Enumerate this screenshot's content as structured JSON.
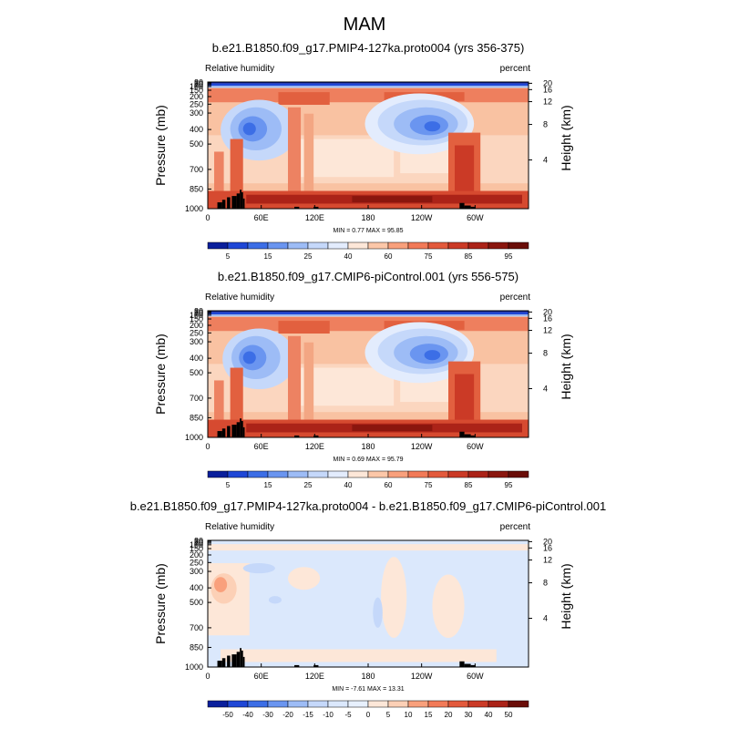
{
  "figure": {
    "title": "MAM"
  },
  "chart_data": [
    {
      "type": "heatmap",
      "title": "b.e21.B1850.f09_g17.PMIP4-127ka.proto004 (yrs 356-375)",
      "left_label": "Relative humidity",
      "right_label": "percent",
      "ylabel": "Pressure (mb)",
      "y2label": "Height (km)",
      "xlim": [
        0,
        360
      ],
      "x_ticks": [
        "0",
        "60E",
        "120E",
        "180",
        "120W",
        "60W"
      ],
      "y_ticks": [
        "1000",
        "850",
        "700",
        "500",
        "400",
        "300",
        "250",
        "200",
        "150",
        "100",
        "70",
        "50",
        "30"
      ],
      "y2_ticks": [
        "4",
        "8",
        "12",
        "16",
        "20"
      ],
      "stats": "MIN =   0.77   MAX =  95.85",
      "min": 0.77,
      "max": 95.85,
      "colorbar": {
        "labels": [
          "5",
          "15",
          "25",
          "40",
          "60",
          "75",
          "85",
          "95"
        ],
        "colors": [
          "#0a1f9c",
          "#1f47d6",
          "#3c6ee6",
          "#6a95f0",
          "#9dbcf6",
          "#c5d8fa",
          "#e3ecfd",
          "#fde7d8",
          "#fcc7a8",
          "#f9a07c",
          "#f27a58",
          "#e35a3c",
          "#cb3a26",
          "#ab2318",
          "#8a160e",
          "#6a0d08"
        ]
      }
    },
    {
      "type": "heatmap",
      "title": "b.e21.B1850.f09_g17.CMIP6-piControl.001 (yrs 556-575)",
      "left_label": "Relative humidity",
      "right_label": "percent",
      "ylabel": "Pressure (mb)",
      "y2label": "Height (km)",
      "xlim": [
        0,
        360
      ],
      "x_ticks": [
        "0",
        "60E",
        "120E",
        "180",
        "120W",
        "60W"
      ],
      "y_ticks": [
        "1000",
        "850",
        "700",
        "500",
        "400",
        "300",
        "250",
        "200",
        "150",
        "100",
        "70",
        "50",
        "30"
      ],
      "y2_ticks": [
        "4",
        "8",
        "12",
        "16",
        "20"
      ],
      "stats": "MIN =   0.69   MAX =  95.79",
      "min": 0.69,
      "max": 95.79,
      "colorbar": {
        "labels": [
          "5",
          "15",
          "25",
          "40",
          "60",
          "75",
          "85",
          "95"
        ],
        "colors": [
          "#0a1f9c",
          "#1f47d6",
          "#3c6ee6",
          "#6a95f0",
          "#9dbcf6",
          "#c5d8fa",
          "#e3ecfd",
          "#fde7d8",
          "#fcc7a8",
          "#f9a07c",
          "#f27a58",
          "#e35a3c",
          "#cb3a26",
          "#ab2318",
          "#8a160e",
          "#6a0d08"
        ]
      }
    },
    {
      "type": "heatmap",
      "title": "b.e21.B1850.f09_g17.PMIP4-127ka.proto004 - b.e21.B1850.f09_g17.CMIP6-piControl.001",
      "left_label": "Relative humidity",
      "right_label": "percent",
      "ylabel": "Pressure (mb)",
      "y2label": "Height (km)",
      "xlim": [
        0,
        360
      ],
      "x_ticks": [
        "0",
        "60E",
        "120E",
        "180",
        "120W",
        "60W"
      ],
      "y_ticks": [
        "1000",
        "850",
        "700",
        "500",
        "400",
        "300",
        "250",
        "200",
        "150",
        "100",
        "70",
        "50",
        "30"
      ],
      "y2_ticks": [
        "4",
        "8",
        "12",
        "16",
        "20"
      ],
      "stats": "MIN =  -7.61   MAX =  13.31",
      "min": -7.61,
      "max": 13.31,
      "colorbar": {
        "labels": [
          "-50",
          "-40",
          "-30",
          "-20",
          "-15",
          "-10",
          "-5",
          "0",
          "5",
          "10",
          "15",
          "20",
          "30",
          "40",
          "50"
        ],
        "colors": [
          "#0a1f9c",
          "#1f47d6",
          "#3c6ee6",
          "#6a95f0",
          "#9dbcf6",
          "#c5d8fa",
          "#dbe8fc",
          "#e7f0fd",
          "#fde7d8",
          "#fcd0b6",
          "#f9a07c",
          "#f27a58",
          "#e35a3c",
          "#cb3a26",
          "#ab2318",
          "#6a0d08"
        ]
      }
    }
  ]
}
